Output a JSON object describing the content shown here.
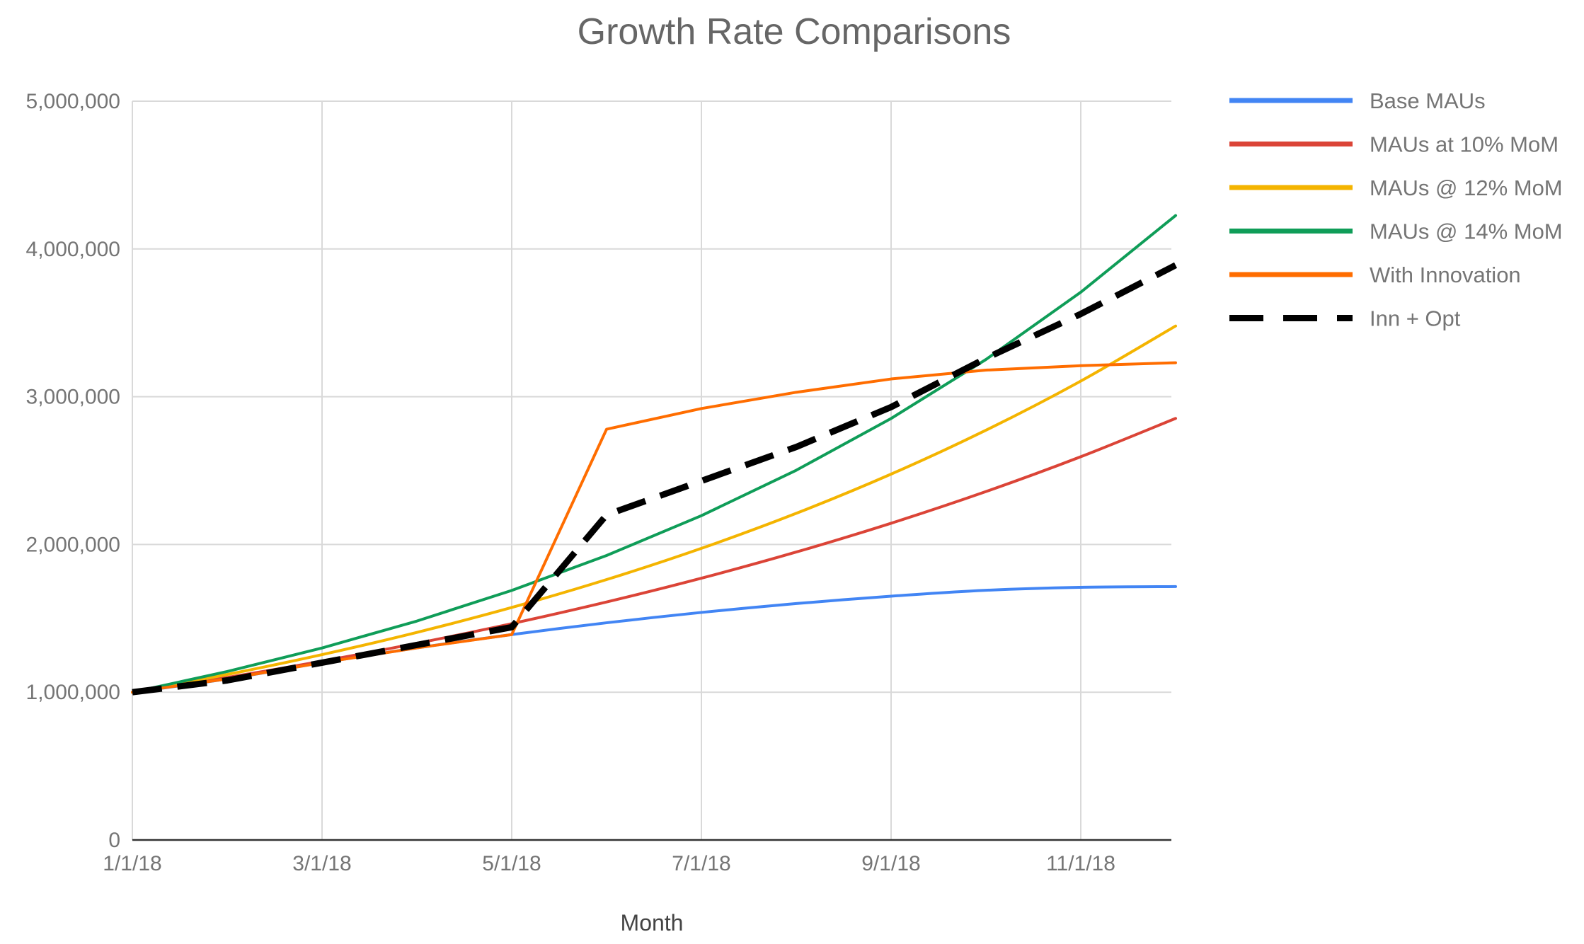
{
  "chart_data": {
    "type": "line",
    "title": "Growth Rate Comparisons",
    "xlabel": "Month",
    "ylabel": "",
    "x": [
      "1/1/18",
      "2/1/18",
      "3/1/18",
      "4/1/18",
      "5/1/18",
      "6/1/18",
      "7/1/18",
      "8/1/18",
      "9/1/18",
      "10/1/18",
      "11/1/18",
      "12/1/18"
    ],
    "x_tick_labels": [
      "1/1/18",
      "3/1/18",
      "5/1/18",
      "7/1/18",
      "9/1/18",
      "11/1/18"
    ],
    "y_tick_labels": [
      "0",
      "1,000,000",
      "2,000,000",
      "3,000,000",
      "4,000,000",
      "5,000,000"
    ],
    "ylim": [
      0,
      5000000
    ],
    "grid": true,
    "legend_position": "right",
    "series": [
      {
        "name": "Base MAUs",
        "color": "#4285f4",
        "dash": false,
        "values": [
          1000000,
          1090000,
          1200000,
          1300000,
          1390000,
          1470000,
          1540000,
          1600000,
          1650000,
          1690000,
          1710000,
          1715000
        ]
      },
      {
        "name": "MAUs at 10% MoM",
        "color": "#db4437",
        "dash": false,
        "values": [
          1000000,
          1100000,
          1210000,
          1331000,
          1464100,
          1610510,
          1771561,
          1948717,
          2143589,
          2357948,
          2593742,
          2853117
        ]
      },
      {
        "name": "MAUs @ 12% MoM",
        "color": "#f4b400",
        "dash": false,
        "values": [
          1000000,
          1120000,
          1254400,
          1404928,
          1573519,
          1762342,
          1973823,
          2210681,
          2475963,
          2773079,
          3105848,
          3478550
        ]
      },
      {
        "name": "MAUs @ 14% MoM",
        "color": "#0f9d58",
        "dash": false,
        "values": [
          1000000,
          1140000,
          1299600,
          1481544,
          1688960,
          1925415,
          2194973,
          2502269,
          2852586,
          3251949,
          3707221,
          4226232
        ]
      },
      {
        "name": "With Innovation",
        "color": "#ff6d00",
        "dash": false,
        "values": [
          1000000,
          1090000,
          1200000,
          1300000,
          1390000,
          2780000,
          2920000,
          3030000,
          3120000,
          3180000,
          3210000,
          3230000
        ]
      },
      {
        "name": "Inn + Opt",
        "color": "#000000",
        "dash": true,
        "values": [
          1000000,
          1080000,
          1200000,
          1320000,
          1440000,
          2200000,
          2430000,
          2660000,
          2930000,
          3260000,
          3560000,
          3890000
        ]
      }
    ]
  }
}
